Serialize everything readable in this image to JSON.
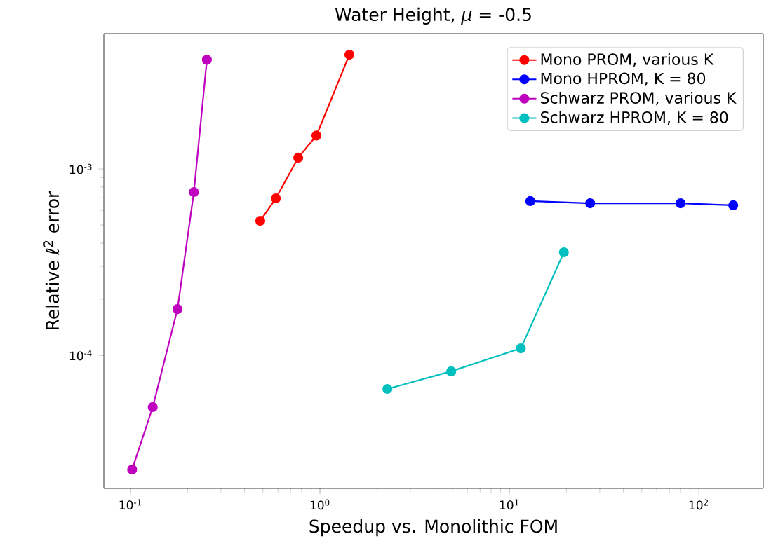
{
  "chart_data": {
    "type": "line",
    "title": "Water Height, *μ* = -0.5",
    "xlabel": "Speedup vs. Monolithic FOM",
    "ylabel": "Relative ℓ$^{2}$ error",
    "log": "xy",
    "marker": "circle",
    "legend": "top right",
    "xlim": [
      0.0723,
      219
    ],
    "ylim": [
      1.93e-05,
      0.00532
    ],
    "xticks": [
      {
        "value": 0.1,
        "label": "10$^{-1}$"
      },
      {
        "value": 1,
        "label": "10$^{0}$"
      },
      {
        "value": 10,
        "label": "10$^{1}$"
      },
      {
        "value": 100,
        "label": "10$^{2}$"
      }
    ],
    "yticks": [
      {
        "value": 0.0001,
        "label": "10$^{-4}$"
      },
      {
        "value": 0.001,
        "label": "10$^{-3}$"
      }
    ],
    "series": [
      {
        "name": "Mono PROM, various K",
        "color": "#ff0000",
        "x": [
          0.484,
          0.585,
          0.768,
          0.958,
          1.43
        ],
        "values": [
          0.000527,
          0.000695,
          0.00115,
          0.00151,
          0.0041
        ]
      },
      {
        "name": "Mono HPROM, K = 80",
        "color": "#0000ff",
        "x": [
          12.9,
          26.7,
          80.1,
          152
        ],
        "values": [
          0.000672,
          0.000654,
          0.000654,
          0.000638
        ]
      },
      {
        "name": "Schwarz PROM, various K",
        "color": "#bf00bf",
        "x": [
          0.102,
          0.131,
          0.177,
          0.216,
          0.253
        ],
        "values": [
          2.44e-05,
          5.27e-05,
          0.000177,
          0.000752,
          0.00385
        ]
      },
      {
        "name": "Schwarz HPROM, K = 80",
        "color": "#00bfbf",
        "x": [
          2.27,
          4.93,
          11.5,
          19.4
        ],
        "values": [
          6.6e-05,
          8.2e-05,
          0.000109,
          0.000357
        ]
      }
    ]
  }
}
